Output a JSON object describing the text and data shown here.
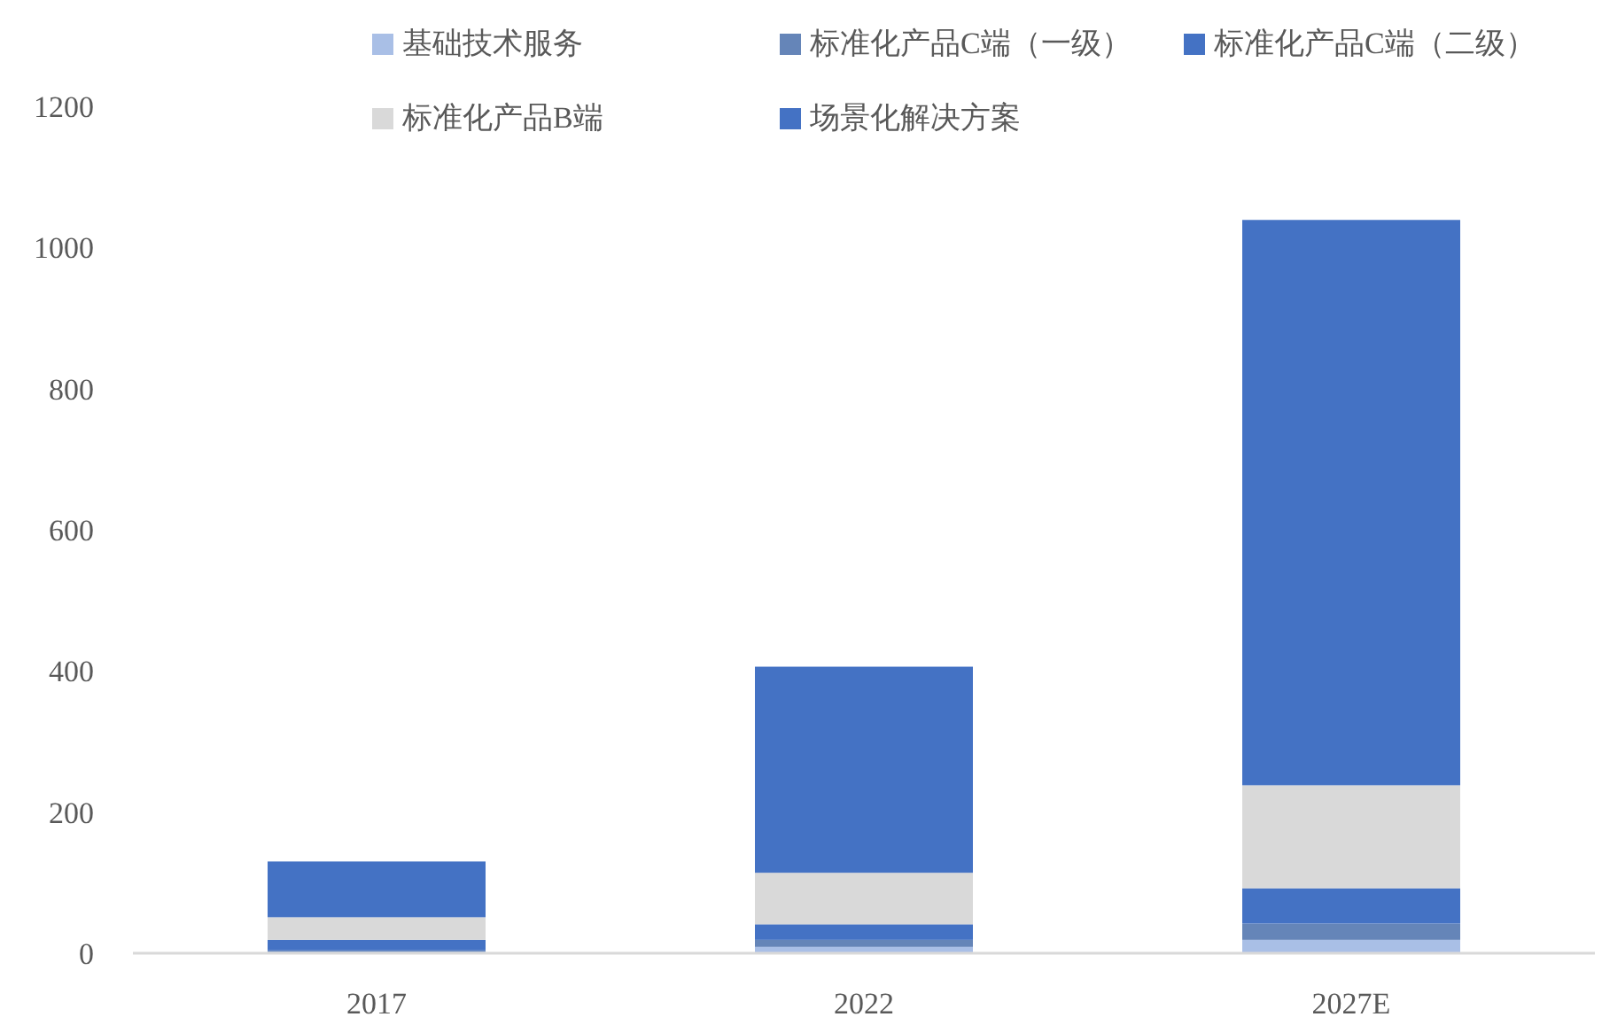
{
  "chart_data": {
    "type": "bar",
    "stacked": true,
    "categories": [
      "2017",
      "2022",
      "2027E"
    ],
    "series": [
      {
        "name": "基础技术服务",
        "color": "#a9bfe6",
        "values": [
          2,
          9,
          19
        ]
      },
      {
        "name": "标准化产品C端（一级）",
        "color": "#6585b8",
        "values": [
          2,
          10,
          23
        ]
      },
      {
        "name": "标准化产品C端（二级）",
        "color": "#4472c4",
        "values": [
          15,
          22,
          50
        ]
      },
      {
        "name": "标准化产品B端",
        "color": "#d9d9d9",
        "values": [
          32,
          73,
          146
        ]
      },
      {
        "name": "场景化解决方案",
        "color": "#4472c4",
        "values": [
          79,
          292,
          801
        ]
      }
    ],
    "ylim": [
      0,
      1200
    ],
    "yticks": [
      0,
      200,
      400,
      600,
      800,
      1000,
      1200
    ],
    "legend": "top",
    "grid": false
  }
}
